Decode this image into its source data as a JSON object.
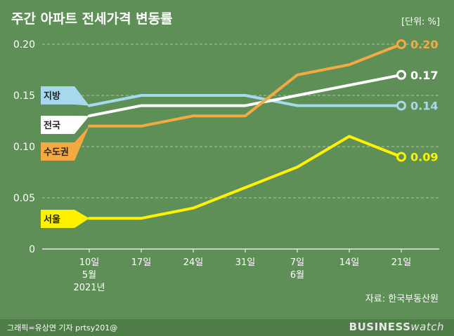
{
  "title": "주간 아파트 전세가격 변동률",
  "unit": "[단위: %]",
  "source": "자료: 한국부동산원",
  "credit": "그래픽=유상연 기자 prtsy201@",
  "brand": {
    "main": "BUSINESS",
    "sub": "watch"
  },
  "chart_data": {
    "type": "line",
    "title": "주간 아파트 전세가격 변동률",
    "x": [
      "10일",
      "17일",
      "24일",
      "31일",
      "7일",
      "14일",
      "21일"
    ],
    "x_sublabels": [
      [
        "5월",
        "2021년"
      ],
      [],
      [],
      [],
      [
        "6월"
      ],
      [],
      []
    ],
    "ylim": [
      0,
      0.2
    ],
    "yticks": [
      "0",
      "0.05",
      "0.10",
      "0.15",
      "0.20"
    ],
    "grid": true,
    "series": [
      {
        "name": "지방",
        "color": "#a8d8ee",
        "values": [
          0.14,
          0.15,
          0.15,
          0.15,
          0.14,
          0.14,
          0.14
        ],
        "end_label": "0.14"
      },
      {
        "name": "전국",
        "color": "#ffffff",
        "values": [
          0.13,
          0.14,
          0.14,
          0.14,
          0.15,
          0.16,
          0.17
        ],
        "end_label": "0.17"
      },
      {
        "name": "수도권",
        "color": "#f5a942",
        "values": [
          0.12,
          0.12,
          0.13,
          0.13,
          0.17,
          0.18,
          0.2
        ],
        "end_label": "0.20"
      },
      {
        "name": "서울",
        "color": "#fff200",
        "values": [
          0.03,
          0.03,
          0.04,
          0.06,
          0.08,
          0.11,
          0.09
        ],
        "end_label": "0.09"
      }
    ]
  }
}
